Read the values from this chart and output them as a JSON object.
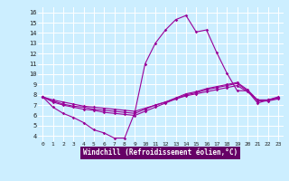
{
  "xlabel": "Windchill (Refroidissement éolien,°C)",
  "bg_color": "#cceeff",
  "line_color": "#990099",
  "xlabel_bg": "#660066",
  "xlabel_fg": "#ffffff",
  "grid_color": "#ffffff",
  "xlim": [
    -0.5,
    23.5
  ],
  "ylim": [
    3.5,
    16.5
  ],
  "yticks": [
    4,
    5,
    6,
    7,
    8,
    9,
    10,
    11,
    12,
    13,
    14,
    15,
    16
  ],
  "xticks": [
    0,
    1,
    2,
    3,
    4,
    5,
    6,
    7,
    8,
    9,
    10,
    11,
    12,
    13,
    14,
    15,
    16,
    17,
    18,
    19,
    20,
    21,
    22,
    23
  ],
  "lines": [
    {
      "x": [
        0,
        1,
        2,
        3,
        4,
        5,
        6,
        7,
        8,
        9,
        10,
        11,
        12,
        13,
        14,
        15,
        16,
        17,
        18,
        19,
        20,
        21,
        22,
        23
      ],
      "y": [
        7.8,
        6.8,
        6.2,
        5.8,
        5.3,
        4.6,
        4.3,
        3.8,
        3.8,
        6.3,
        11.0,
        13.0,
        14.3,
        15.3,
        15.7,
        14.1,
        14.3,
        12.1,
        10.1,
        8.4,
        8.4,
        7.2,
        7.5,
        7.8
      ]
    },
    {
      "x": [
        0,
        1,
        2,
        3,
        4,
        5,
        6,
        7,
        8,
        9,
        10,
        11,
        12,
        13,
        14,
        15,
        16,
        17,
        18,
        19,
        20,
        21,
        22,
        23
      ],
      "y": [
        7.8,
        7.3,
        7.0,
        6.8,
        6.6,
        6.5,
        6.3,
        6.2,
        6.1,
        6.0,
        6.4,
        6.8,
        7.2,
        7.6,
        8.0,
        8.2,
        8.5,
        8.7,
        8.9,
        9.1,
        8.4,
        7.4,
        7.4,
        7.6
      ]
    },
    {
      "x": [
        0,
        1,
        2,
        3,
        4,
        5,
        6,
        7,
        8,
        9,
        10,
        11,
        12,
        13,
        14,
        15,
        16,
        17,
        18,
        19,
        20,
        21,
        22,
        23
      ],
      "y": [
        7.8,
        7.4,
        7.1,
        6.9,
        6.8,
        6.6,
        6.5,
        6.4,
        6.3,
        6.2,
        6.6,
        7.0,
        7.3,
        7.7,
        8.1,
        8.3,
        8.6,
        8.8,
        9.0,
        9.2,
        8.5,
        7.5,
        7.5,
        7.7
      ]
    },
    {
      "x": [
        0,
        1,
        2,
        3,
        4,
        5,
        6,
        7,
        8,
        9,
        10,
        11,
        12,
        13,
        14,
        15,
        16,
        17,
        18,
        19,
        20,
        21,
        22,
        23
      ],
      "y": [
        7.8,
        7.5,
        7.3,
        7.1,
        6.9,
        6.8,
        6.7,
        6.6,
        6.5,
        6.4,
        6.7,
        7.0,
        7.3,
        7.6,
        7.9,
        8.1,
        8.3,
        8.5,
        8.7,
        8.9,
        8.3,
        7.5,
        7.5,
        7.7
      ]
    }
  ]
}
